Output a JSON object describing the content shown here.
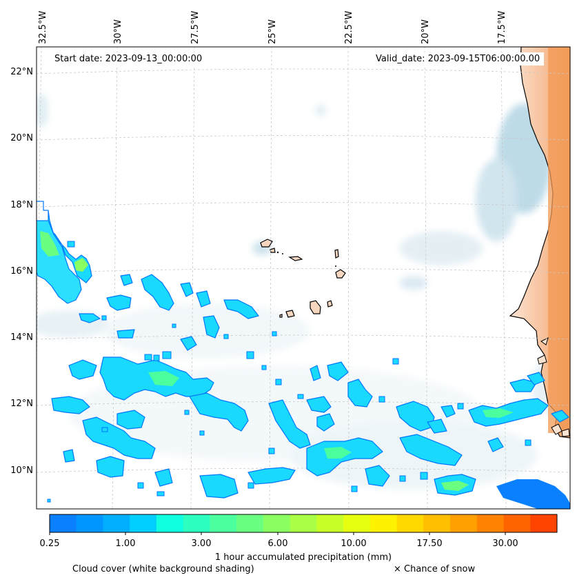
{
  "map": {
    "start_date": "Start date: 2023-09-13_00:00:00",
    "valid_date": "Valid_date: 2023-09-15T06:00:00.00",
    "lon_labels": [
      "32.5°W",
      "30°W",
      "27.5°W",
      "25°W",
      "22.5°W",
      "20°W",
      "17.5°W"
    ],
    "lat_labels": [
      "22°N",
      "20°N",
      "18°N",
      "16°N",
      "14°N",
      "12°N",
      "10°N"
    ]
  },
  "colorbar": {
    "colors": [
      "#0a80ff",
      "#0096ff",
      "#00b0ff",
      "#00cfff",
      "#10ffe0",
      "#2dffc0",
      "#4cff9e",
      "#6aff80",
      "#8aff62",
      "#a8ff45",
      "#c8ff28",
      "#e6ff10",
      "#fff200",
      "#ffd800",
      "#ffbe00",
      "#ffa000",
      "#ff8200",
      "#ff6400",
      "#ff4400"
    ],
    "tick_labels": [
      "0.25",
      "1.00",
      "3.00",
      "6.00",
      "10.00",
      "17.50",
      "30.00"
    ],
    "label": "1 hour accumulated precipitation (mm)"
  },
  "legend": {
    "cloud": "Cloud cover (white background shading)",
    "snow": "× Chance of snow"
  }
}
